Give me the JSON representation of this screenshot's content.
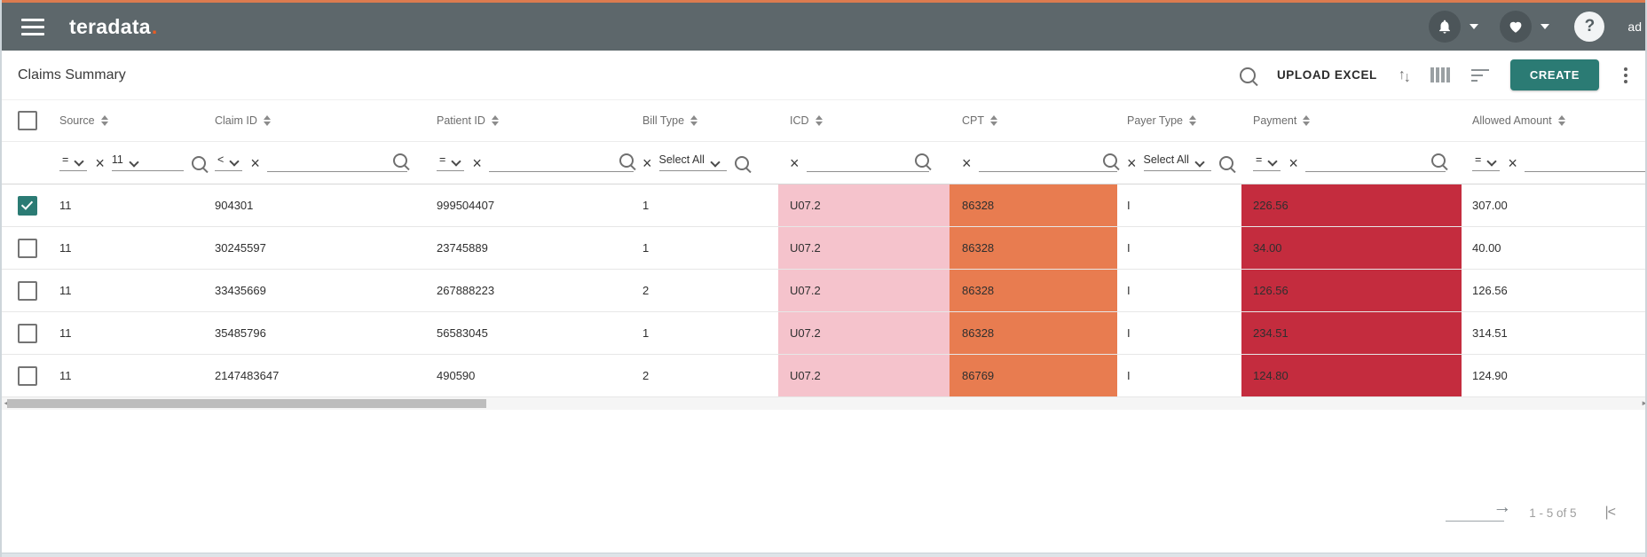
{
  "app_bar": {
    "logo_text": "teradata",
    "logo_dot": ".",
    "user_label": "ad"
  },
  "toolbar": {
    "title": "Claims Summary",
    "upload_label": "UPLOAD EXCEL",
    "create_label": "CREATE"
  },
  "icons": {
    "clear": "×",
    "arrow_up": "↑",
    "arrow_down": "↓",
    "help": "?",
    "go_arrow": "→",
    "first_page": "|<",
    "scroll_left": "◄",
    "scroll_right": "►"
  },
  "colors": {
    "accent_orange": "#dc7b4f",
    "brand_dot": "#e85c24",
    "teal": "#2b7b74",
    "icd_bg": "#f5c3cc",
    "cpt_bg": "#e87c50",
    "payment_bg": "#c42c3e"
  },
  "table": {
    "columns": [
      {
        "key": "source",
        "label": "Source",
        "filter": {
          "op": "=",
          "kind": "dropdown",
          "value": "11"
        }
      },
      {
        "key": "claim_id",
        "label": "Claim ID",
        "filter": {
          "op": "<",
          "kind": "text",
          "value": ""
        }
      },
      {
        "key": "patient_id",
        "label": "Patient ID",
        "filter": {
          "op": "=",
          "kind": "text",
          "value": ""
        }
      },
      {
        "key": "bill_type",
        "label": "Bill Type",
        "filter": {
          "kind": "select",
          "value": "Select All"
        }
      },
      {
        "key": "icd",
        "label": "ICD",
        "filter": {
          "kind": "text",
          "value": ""
        },
        "highlight": "icd_bg"
      },
      {
        "key": "cpt",
        "label": "CPT",
        "filter": {
          "kind": "text",
          "value": ""
        },
        "highlight": "cpt_bg"
      },
      {
        "key": "payer_type",
        "label": "Payer Type",
        "filter": {
          "kind": "select",
          "value": "Select All"
        }
      },
      {
        "key": "payment",
        "label": "Payment",
        "filter": {
          "op": "=",
          "kind": "text",
          "value": ""
        },
        "highlight": "payment_bg"
      },
      {
        "key": "allowed_amount",
        "label": "Allowed Amount",
        "filter": {
          "op": "=",
          "kind": "text",
          "value": ""
        }
      }
    ],
    "rows": [
      {
        "checked": true,
        "cells": {
          "source": "11",
          "claim_id": "904301",
          "patient_id": "999504407",
          "bill_type": "1",
          "icd": "U07.2",
          "cpt": "86328",
          "payer_type": "I",
          "payment": "226.56",
          "allowed_amount": "307.00"
        }
      },
      {
        "checked": false,
        "cells": {
          "source": "11",
          "claim_id": "30245597",
          "patient_id": "23745889",
          "bill_type": "1",
          "icd": "U07.2",
          "cpt": "86328",
          "payer_type": "I",
          "payment": "34.00",
          "allowed_amount": "40.00"
        }
      },
      {
        "checked": false,
        "cells": {
          "source": "11",
          "claim_id": "33435669",
          "patient_id": "267888223",
          "bill_type": "2",
          "icd": "U07.2",
          "cpt": "86328",
          "payer_type": "I",
          "payment": "126.56",
          "allowed_amount": "126.56"
        }
      },
      {
        "checked": false,
        "cells": {
          "source": "11",
          "claim_id": "35485796",
          "patient_id": "56583045",
          "bill_type": "1",
          "icd": "U07.2",
          "cpt": "86328",
          "payer_type": "I",
          "payment": "234.51",
          "allowed_amount": "314.51"
        }
      },
      {
        "checked": false,
        "cells": {
          "source": "11",
          "claim_id": "2147483647",
          "patient_id": "490590",
          "bill_type": "2",
          "icd": "U07.2",
          "cpt": "86769",
          "payer_type": "I",
          "payment": "124.80",
          "allowed_amount": "124.90"
        }
      }
    ]
  },
  "pagination": {
    "range": "1 - 5 of 5"
  }
}
